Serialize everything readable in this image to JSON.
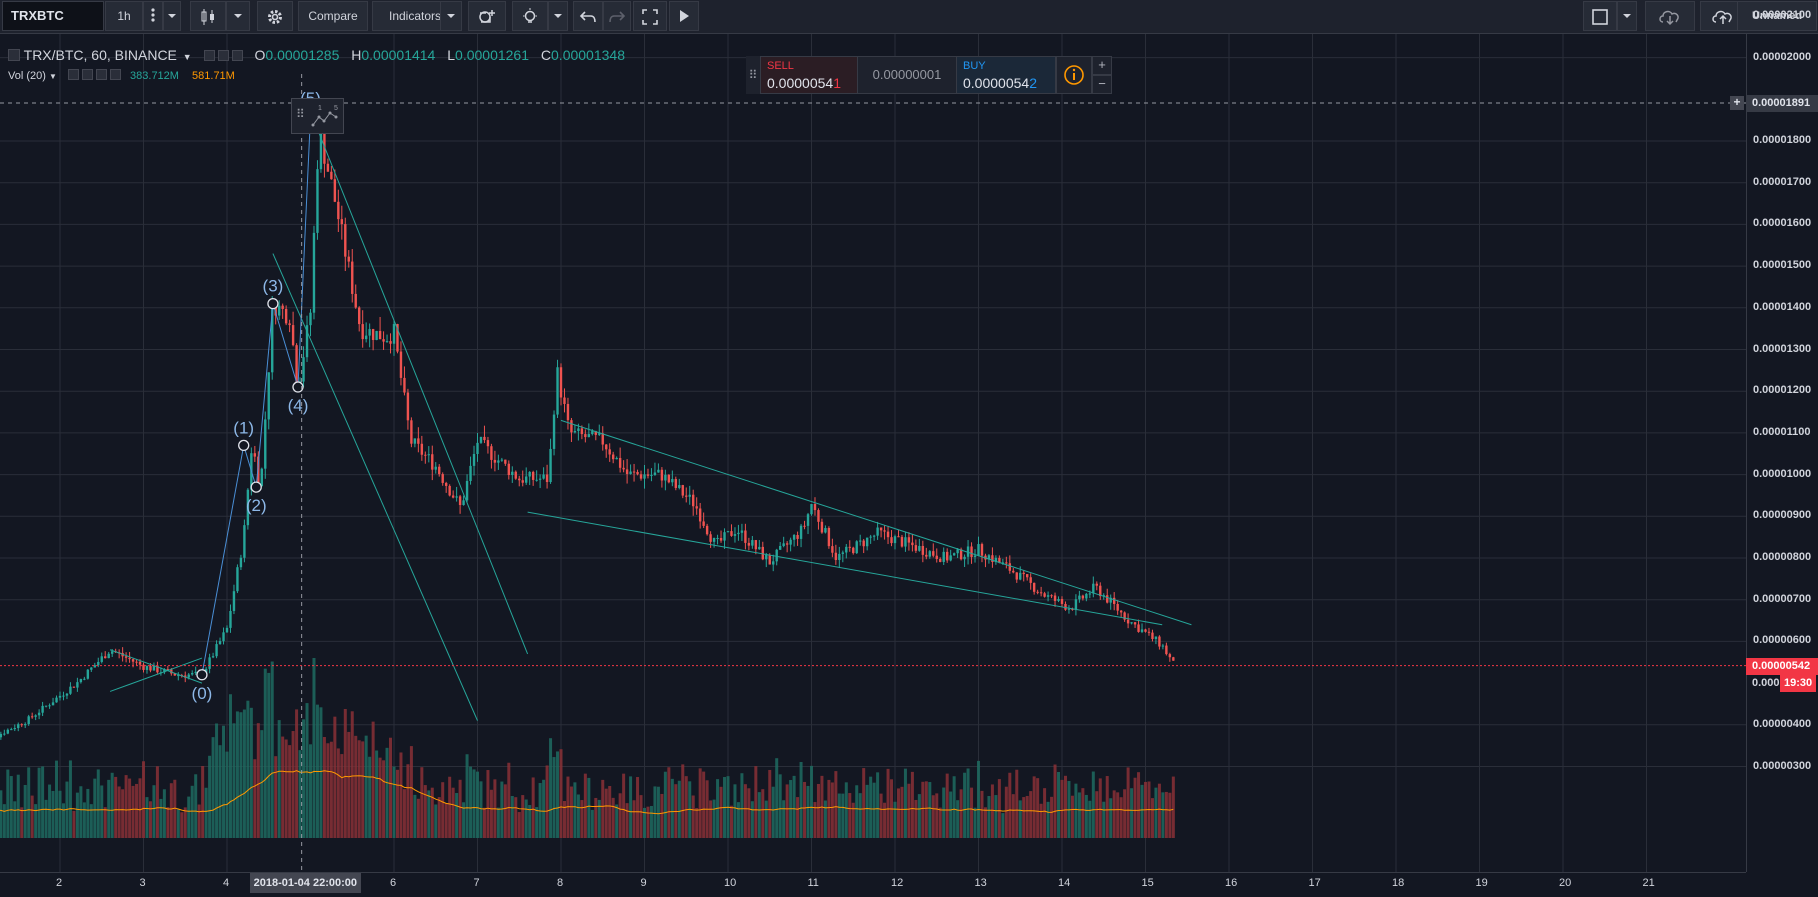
{
  "toolbar": {
    "symbol": "TRXBTC",
    "interval": "1h",
    "compare_label": "Compare",
    "indicators_label": "Indicators",
    "layout_name": "Unnamed"
  },
  "legend": {
    "symbol_line": "TRX/BTC, 60, BINANCE",
    "o_label": "O",
    "o_value": "0.00001285",
    "h_label": "H",
    "h_value": "0.00001414",
    "l_label": "L",
    "l_value": "0.00001261",
    "c_label": "C",
    "c_value": "0.00001348",
    "vol_label": "Vol (20)",
    "vol_value": "383.712M",
    "vol_ma_value": "581.71M"
  },
  "trade_panel": {
    "sell_label": "SELL",
    "sell_price_main": "0.0000054",
    "sell_price_last": "1",
    "spread": "0.00000001",
    "buy_label": "BUY",
    "buy_price_main": "0.0000054",
    "buy_price_last": "2",
    "plus": "+",
    "minus": "−"
  },
  "price_axis": {
    "labels": [
      "0.00002100",
      "0.00002000",
      "0.00001800",
      "0.00001700",
      "0.00001600",
      "0.00001500",
      "0.00001400",
      "0.00001300",
      "0.00001200",
      "0.00001100",
      "0.00001000",
      "0.00000900",
      "0.00000800",
      "0.00000700",
      "0.00000600",
      "0.00000400",
      "0.00000300"
    ],
    "crosshair_price": "0.00001891",
    "last_price": "0.00000542",
    "countdown_price": "0.000",
    "countdown": "19:30"
  },
  "time_axis": {
    "labels": [
      "2",
      "3",
      "4",
      "6",
      "7",
      "8",
      "9",
      "10",
      "11",
      "12",
      "13",
      "14",
      "15",
      "16",
      "17",
      "18",
      "19",
      "20",
      "21"
    ],
    "crosshair_time": "2018-01-04 22:00:00"
  },
  "waves": [
    "(0)",
    "(1)",
    "(2)",
    "(3)",
    "(4)",
    "(5)"
  ],
  "drawing_toolbar": {
    "label_a": "1",
    "label_b": "5"
  },
  "colors": {
    "background": "#131722",
    "up": "#26a69a",
    "down": "#ef5350",
    "trendline": "#26a69a",
    "volume_ma": "#ff9800",
    "wave_label": "#8db8e8",
    "last_price": "#f23645"
  },
  "chart_data": {
    "type": "candlestick",
    "symbol": "TRX/BTC",
    "exchange": "BINANCE",
    "interval": "60",
    "x_ticks": [
      "2",
      "3",
      "4",
      "6",
      "7",
      "8",
      "9",
      "10",
      "11",
      "12",
      "13",
      "14",
      "15",
      "16",
      "17",
      "18",
      "19",
      "20",
      "21"
    ],
    "y_ticks": [
      2.1e-05,
      2e-05,
      1.8e-05,
      1.7e-05,
      1.6e-05,
      1.5e-05,
      1.4e-05,
      1.3e-05,
      1.2e-05,
      1.1e-05,
      1e-05,
      9e-06,
      8e-06,
      7e-06,
      6e-06,
      4e-06,
      3e-06
    ],
    "price_path": [
      [
        1.0,
        3.5e-06
      ],
      [
        1.6,
        4.1e-06
      ],
      [
        2.2,
        5e-06
      ],
      [
        2.6,
        5.8e-06
      ],
      [
        3.0,
        5.4e-06
      ],
      [
        3.4,
        5.2e-06
      ],
      [
        3.7,
        5.2e-06
      ],
      [
        4.0,
        6.3e-06
      ],
      [
        4.2,
        8.5e-06
      ],
      [
        4.3,
        1.08e-05
      ],
      [
        4.4,
        9.6e-06
      ],
      [
        4.55,
        1.41e-05
      ],
      [
        4.75,
        1.38e-05
      ],
      [
        4.85,
        1.21e-05
      ],
      [
        5.0,
        1.39e-05
      ],
      [
        5.1,
        1.83e-05
      ],
      [
        5.3,
        1.65e-05
      ],
      [
        5.6,
        1.35e-05
      ],
      [
        5.9,
        1.33e-05
      ],
      [
        6.0,
        1.34e-05
      ],
      [
        6.2,
        1.08e-05
      ],
      [
        6.5,
        1.02e-05
      ],
      [
        6.8,
        9.2e-06
      ],
      [
        7.0,
        1.08e-05
      ],
      [
        7.5,
        9.9e-06
      ],
      [
        7.85,
        9.9e-06
      ],
      [
        7.95,
        1.25e-05
      ],
      [
        8.1,
        1.1e-05
      ],
      [
        8.5,
        1.08e-05
      ],
      [
        8.8,
        1e-05
      ],
      [
        9.2,
        1e-05
      ],
      [
        9.6,
        9.3e-06
      ],
      [
        9.85,
        8.3e-06
      ],
      [
        10.1,
        8.7e-06
      ],
      [
        10.5,
        7.9e-06
      ],
      [
        10.9,
        8.7e-06
      ],
      [
        11.0,
        9.3e-06
      ],
      [
        11.3,
        8e-06
      ],
      [
        11.8,
        8.6e-06
      ],
      [
        12.2,
        8.3e-06
      ],
      [
        12.6,
        8e-06
      ],
      [
        13.0,
        8.2e-06
      ],
      [
        13.4,
        7.7e-06
      ],
      [
        13.8,
        7.1e-06
      ],
      [
        14.1,
        6.8e-06
      ],
      [
        14.4,
        7.3e-06
      ],
      [
        14.8,
        6.5e-06
      ],
      [
        15.0,
        6.2e-06
      ],
      [
        15.2,
        5.9e-06
      ],
      [
        15.35,
        5.4e-06
      ]
    ],
    "crosshair": {
      "time": "2018-01-04 22:00:00",
      "price": 1.891e-05
    },
    "last_price": 5.42e-06,
    "volume_ma_length": 20,
    "wave_points": [
      {
        "label": "(0)",
        "x": 3.7,
        "y": 5.2e-06
      },
      {
        "label": "(1)",
        "x": 4.2,
        "y": 1.07e-05
      },
      {
        "label": "(2)",
        "x": 4.35,
        "y": 9.7e-06
      },
      {
        "label": "(3)",
        "x": 4.55,
        "y": 1.41e-05
      },
      {
        "label": "(4)",
        "x": 4.85,
        "y": 1.21e-05
      },
      {
        "label": "(5)",
        "x": 5.0,
        "y": 1.86e-05
      }
    ],
    "trendlines": [
      [
        [
          2.6,
          5.8e-06
        ],
        [
          3.7,
          5e-06
        ]
      ],
      [
        [
          2.6,
          4.8e-06
        ],
        [
          3.7,
          5.6e-06
        ]
      ],
      [
        [
          5.1,
          1.82e-05
        ],
        [
          7.6,
          5.7e-06
        ]
      ],
      [
        [
          4.55,
          1.53e-05
        ],
        [
          7.0,
          4.1e-06
        ]
      ],
      [
        [
          8.0,
          1.13e-05
        ],
        [
          15.55,
          6.4e-06
        ]
      ],
      [
        [
          7.6,
          9.1e-06
        ],
        [
          15.2,
          6.4e-06
        ]
      ]
    ]
  }
}
